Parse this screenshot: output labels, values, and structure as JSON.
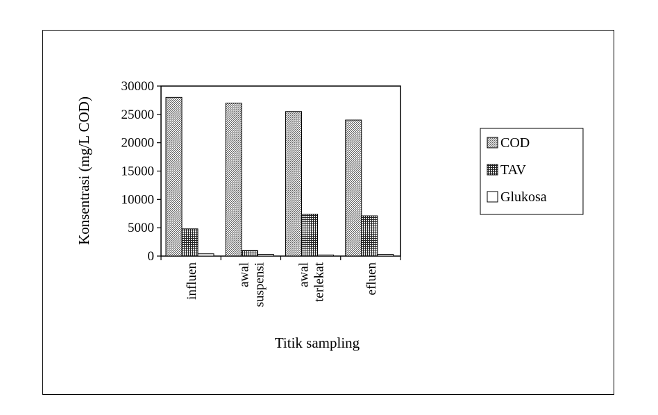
{
  "chart_data": {
    "type": "bar",
    "xlabel": "Titik sampling",
    "ylabel": "Konsentrasi (mg/L COD)",
    "ylim": [
      0,
      30000
    ],
    "yticks": [
      "0",
      "5000",
      "10000",
      "15000",
      "20000",
      "25000",
      "30000"
    ],
    "categories": [
      [
        "influen"
      ],
      [
        "awal",
        "suspensi"
      ],
      [
        "awal",
        "terlekat"
      ],
      [
        "efluen"
      ]
    ],
    "series": [
      {
        "name": "COD",
        "values": [
          28000,
          27000,
          25500,
          24000
        ]
      },
      {
        "name": "TAV",
        "values": [
          4800,
          1000,
          7400,
          7100
        ]
      },
      {
        "name": "Glukosa",
        "values": [
          400,
          300,
          200,
          300
        ]
      }
    ],
    "legend_position": "right",
    "grid": false
  }
}
